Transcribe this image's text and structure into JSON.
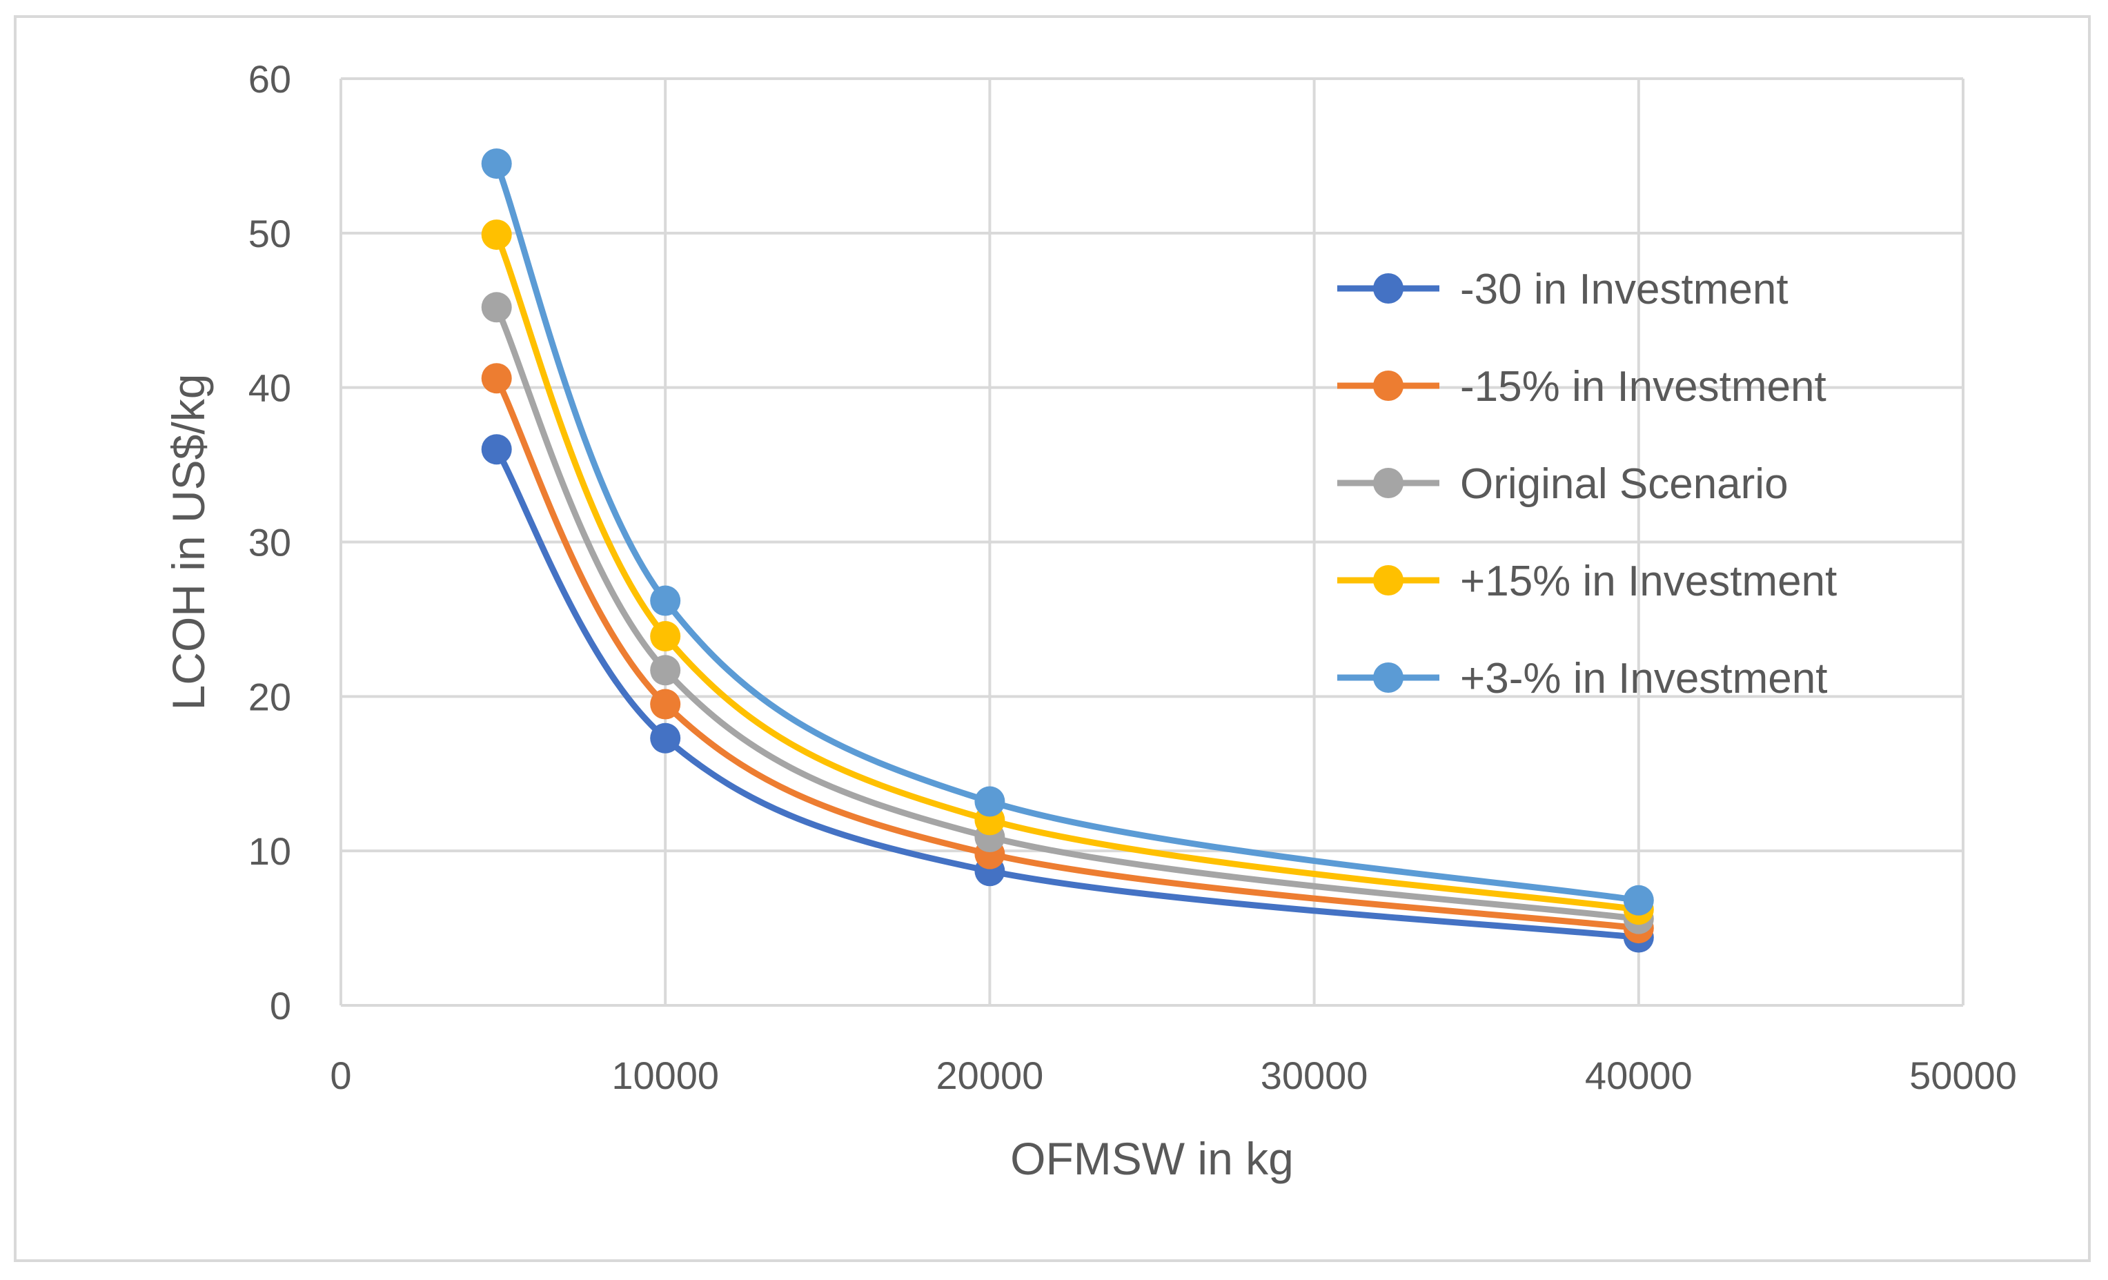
{
  "chart_data": {
    "type": "line",
    "title": "",
    "xlabel": "OFMSW in kg",
    "ylabel": "LCOH in US$/kg",
    "xlim": [
      0,
      50000
    ],
    "ylim": [
      0,
      60
    ],
    "xticks": [
      0,
      10000,
      20000,
      30000,
      40000,
      50000
    ],
    "yticks": [
      0,
      10,
      20,
      30,
      40,
      50,
      60
    ],
    "grid": true,
    "legend_position": "right",
    "smooth": true,
    "x": [
      4800,
      10000,
      20000,
      40000
    ],
    "series": [
      {
        "name": "-30 in Investment",
        "color": "#4472C4",
        "values": [
          36.0,
          17.3,
          8.7,
          4.4
        ]
      },
      {
        "name": "-15% in Investment",
        "color": "#ED7D31",
        "values": [
          40.6,
          19.5,
          9.8,
          5.0
        ]
      },
      {
        "name": "Original Scenario",
        "color": "#A5A5A5",
        "values": [
          45.2,
          21.7,
          10.9,
          5.6
        ]
      },
      {
        "name": "+15% in Investment",
        "color": "#FFC000",
        "values": [
          49.9,
          23.9,
          12.0,
          6.2
        ]
      },
      {
        "name": "+3-% in Investment",
        "color": "#5B9BD5",
        "values": [
          54.5,
          26.2,
          13.2,
          6.8
        ]
      }
    ]
  }
}
